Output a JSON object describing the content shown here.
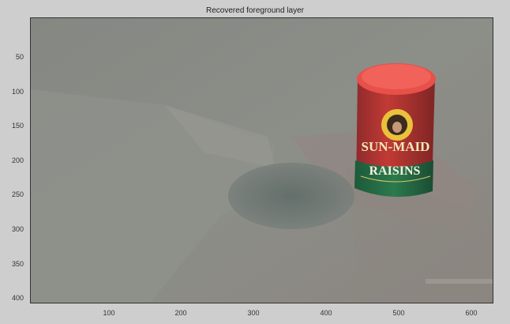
{
  "title": "Recovered foreground layer",
  "axes": {
    "x_ticks": [
      "100",
      "200",
      "300",
      "400",
      "500",
      "600"
    ],
    "y_ticks": [
      "50",
      "100",
      "150",
      "200",
      "250",
      "300",
      "350",
      "400"
    ]
  },
  "scene": {
    "can_label_brand": "SUN-MAID",
    "can_label_product": "RAISINS",
    "can_color": "#c23a35",
    "lid_color": "#e8504a",
    "background_color": "#8a8d86"
  }
}
